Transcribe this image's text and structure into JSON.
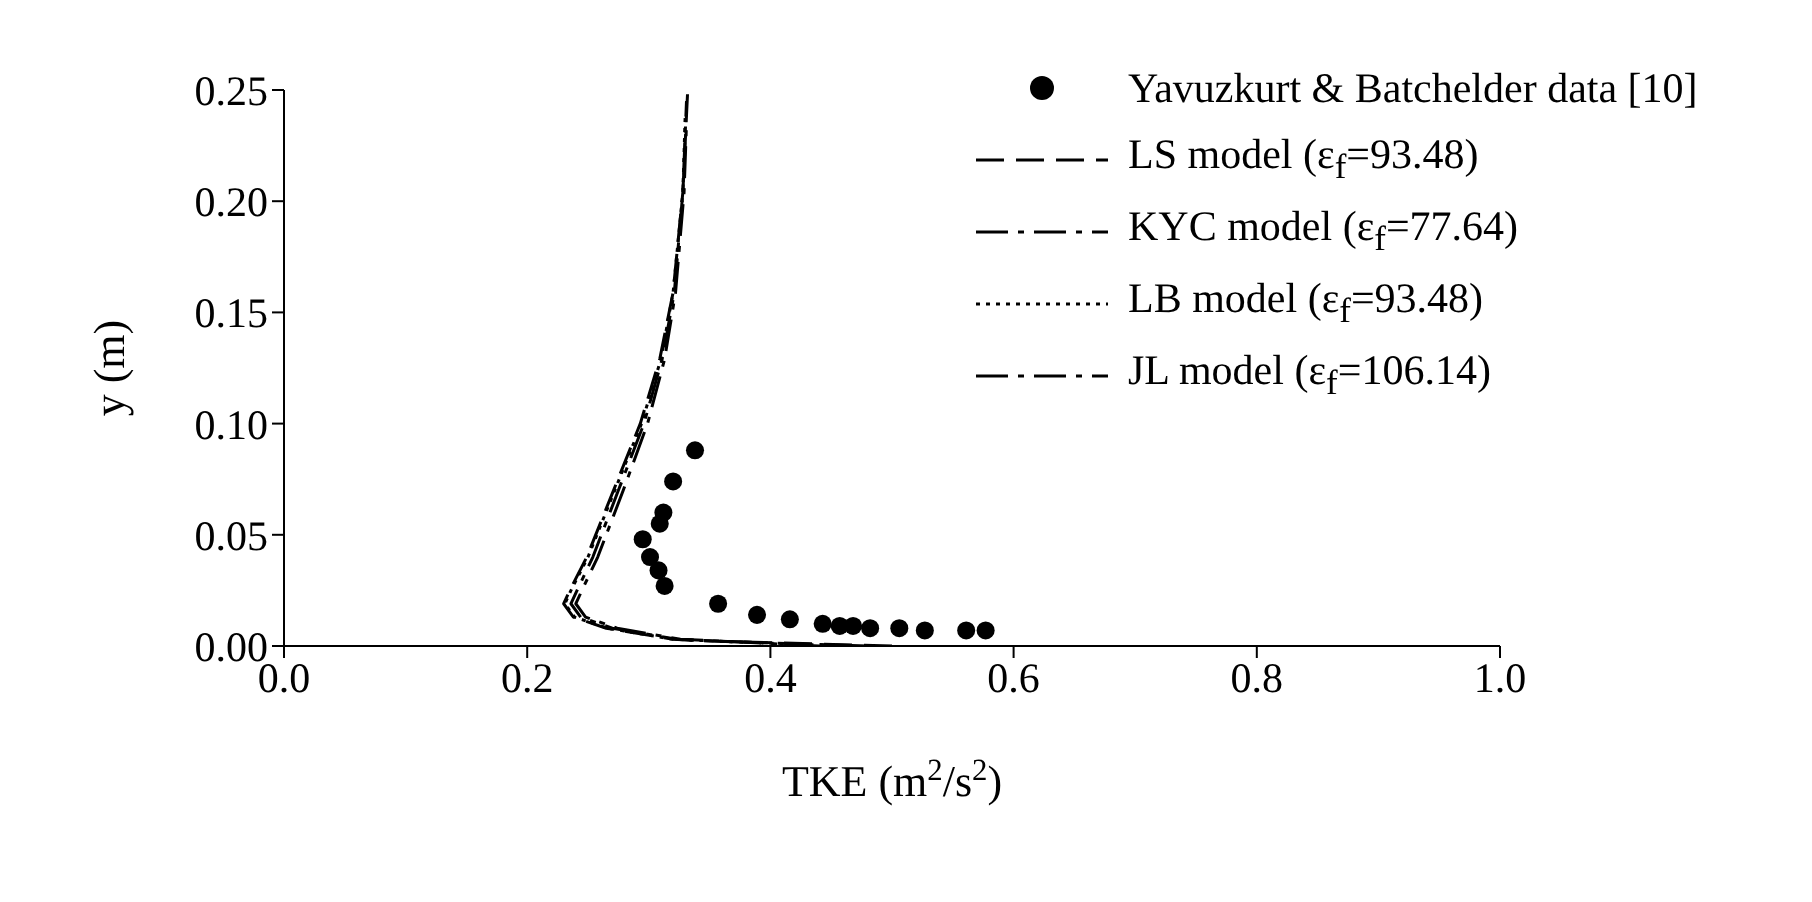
{
  "chart_data": {
    "type": "line",
    "xlabel": "TKE (m$^{2}$/s$^{2}$)",
    "ylabel": "y (m)",
    "xlim": [
      0,
      1
    ],
    "xticks": [
      {
        "value": 0,
        "label": "0.0"
      },
      0.2,
      0.4,
      0.6,
      0.8,
      {
        "value": 1,
        "label": "1.0"
      }
    ],
    "ylim": [
      0,
      0.25
    ],
    "yticks": [
      {
        "value": 0,
        "label": "0.00"
      },
      0.05,
      {
        "value": 0.1,
        "label": "0.10"
      },
      0.15,
      {
        "value": 0.2,
        "label": "0.20"
      },
      0.25
    ],
    "grid": false,
    "legend": "top right",
    "marker": "none",
    "series": [
      {
        "name": "Yavuzkurt & Batchelder data [10]",
        "type": "scatter",
        "marker": "circle",
        "color": "#000000",
        "x": [
          0.338,
          0.32,
          0.312,
          0.309,
          0.295,
          0.301,
          0.308,
          0.313,
          0.357,
          0.389,
          0.416,
          0.443,
          0.457,
          0.468,
          0.482,
          0.506,
          0.527,
          0.561,
          0.577
        ],
        "values": [
          0.088,
          0.074,
          0.06,
          0.055,
          0.048,
          0.04,
          0.034,
          0.027,
          0.019,
          0.014,
          0.012,
          0.01,
          0.009,
          0.009,
          0.008,
          0.008,
          0.007,
          0.007,
          0.007
        ]
      },
      {
        "name": "LS model (ε$_{f}$=93.48)",
        "line_style": "dashed",
        "color": "#000000",
        "x": [
          0.5,
          0.363,
          0.32,
          0.265,
          0.238,
          0.23,
          0.235,
          0.249,
          0.271,
          0.293,
          0.309,
          0.32,
          0.328,
          0.332
        ],
        "values": [
          0,
          0.002,
          0.003,
          0.008,
          0.013,
          0.019,
          0.025,
          0.04,
          0.07,
          0.1,
          0.129,
          0.159,
          0.204,
          0.25
        ]
      },
      {
        "name": "KYC model (ε$_{f}$=77.64)",
        "line_style": "dashdot",
        "color": "#000000",
        "x": [
          0.48,
          0.365,
          0.323,
          0.27,
          0.244,
          0.236,
          0.241,
          0.254,
          0.275,
          0.296,
          0.311,
          0.321,
          0.328,
          0.331
        ],
        "values": [
          0,
          0.002,
          0.003,
          0.008,
          0.013,
          0.019,
          0.025,
          0.04,
          0.07,
          0.1,
          0.129,
          0.159,
          0.204,
          0.245
        ]
      },
      {
        "name": "LB model (ε$_{f}$=93.48)",
        "line_style": "dotted",
        "color": "#000000",
        "x": [
          0.46,
          0.363,
          0.32,
          0.266,
          0.239,
          0.231,
          0.236,
          0.25,
          0.272,
          0.294,
          0.31,
          0.32,
          0.328,
          0.33
        ],
        "values": [
          0,
          0.002,
          0.003,
          0.008,
          0.013,
          0.019,
          0.025,
          0.04,
          0.07,
          0.1,
          0.129,
          0.159,
          0.204,
          0.24
        ]
      },
      {
        "name": "JL model (ε$_{f}$=106.14)",
        "line_style": "dashdot",
        "color": "#000000",
        "x": [
          0.44,
          0.367,
          0.326,
          0.274,
          0.248,
          0.24,
          0.245,
          0.258,
          0.279,
          0.299,
          0.313,
          0.322,
          0.329,
          0.331
        ],
        "values": [
          0,
          0.002,
          0.003,
          0.008,
          0.013,
          0.019,
          0.025,
          0.04,
          0.07,
          0.1,
          0.129,
          0.159,
          0.204,
          0.235
        ]
      }
    ]
  }
}
